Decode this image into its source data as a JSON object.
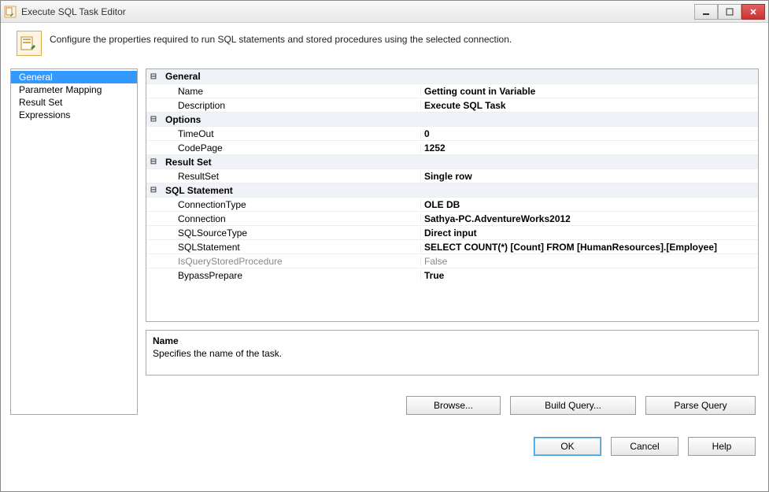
{
  "window": {
    "title": "Execute SQL Task Editor"
  },
  "header": {
    "description": "Configure the properties required to run SQL statements and stored procedures using the selected connection."
  },
  "sidebar": {
    "items": [
      {
        "label": "General",
        "selected": true
      },
      {
        "label": "Parameter Mapping",
        "selected": false
      },
      {
        "label": "Result Set",
        "selected": false
      },
      {
        "label": "Expressions",
        "selected": false
      }
    ]
  },
  "grid": {
    "categories": [
      {
        "name": "General",
        "rows": [
          {
            "label": "Name",
            "value": "Getting count in Variable",
            "bold": true
          },
          {
            "label": "Description",
            "value": "Execute SQL Task",
            "bold": true
          }
        ]
      },
      {
        "name": "Options",
        "rows": [
          {
            "label": "TimeOut",
            "value": "0",
            "bold": true
          },
          {
            "label": "CodePage",
            "value": "1252",
            "bold": true
          }
        ]
      },
      {
        "name": "Result Set",
        "rows": [
          {
            "label": "ResultSet",
            "value": "Single row",
            "bold": true
          }
        ]
      },
      {
        "name": "SQL Statement",
        "rows": [
          {
            "label": "ConnectionType",
            "value": "OLE DB",
            "bold": true
          },
          {
            "label": "Connection",
            "value": "Sathya-PC.AdventureWorks2012",
            "bold": true
          },
          {
            "label": "SQLSourceType",
            "value": "Direct input",
            "bold": true
          },
          {
            "label": "SQLStatement",
            "value": "SELECT COUNT(*) [Count] FROM [HumanResources].[Employee]",
            "bold": true
          },
          {
            "label": "IsQueryStoredProcedure",
            "value": "False",
            "bold": false,
            "disabled": true
          },
          {
            "label": "BypassPrepare",
            "value": "True",
            "bold": true
          }
        ]
      }
    ]
  },
  "description_panel": {
    "title": "Name",
    "text": "Specifies the name of the task."
  },
  "buttons": {
    "browse": "Browse...",
    "build_query": "Build Query...",
    "parse_query": "Parse Query",
    "ok": "OK",
    "cancel": "Cancel",
    "help": "Help"
  },
  "colors": {
    "selection_bg": "#3399ff",
    "category_bg": "#eff3f7",
    "border": "#aaaaaa"
  }
}
